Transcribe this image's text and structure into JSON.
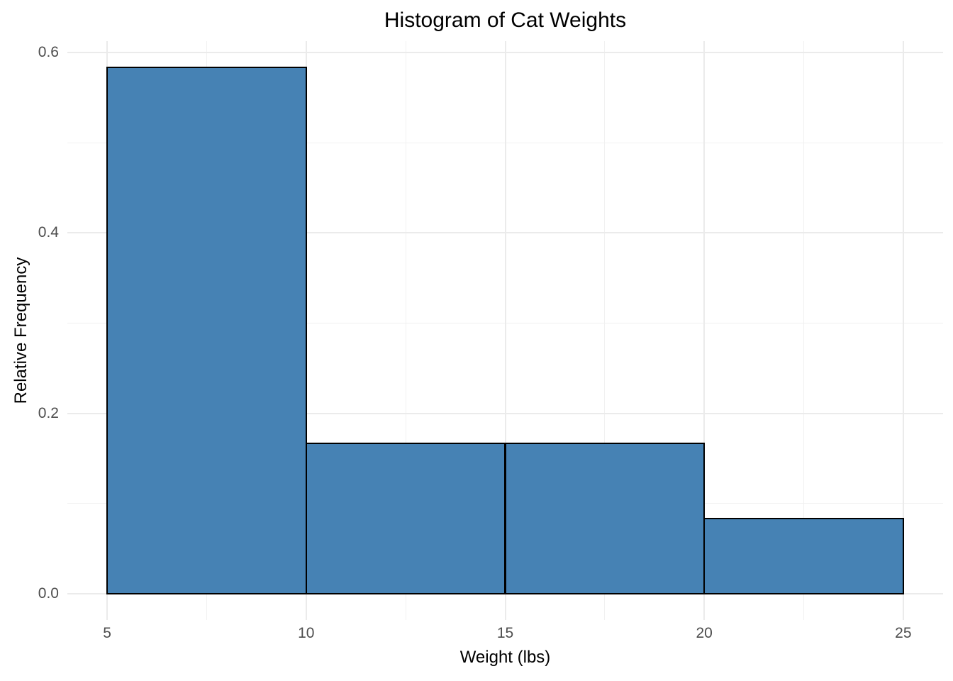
{
  "chart_data": {
    "type": "bar",
    "subtype": "histogram",
    "title": "Histogram of Cat Weights",
    "xlabel": "Weight (lbs)",
    "ylabel": "Relative Frequency",
    "bin_edges": [
      5,
      10,
      15,
      20,
      25
    ],
    "bin_labels": [
      "5-10",
      "10-15",
      "15-20",
      "20-25"
    ],
    "values": [
      0.5833,
      0.1667,
      0.1667,
      0.0833
    ],
    "x_tick_values": [
      5,
      10,
      15,
      20,
      25
    ],
    "x_tick_labels": [
      "5",
      "10",
      "15",
      "20",
      "25"
    ],
    "y_tick_values": [
      0,
      0.2,
      0.4,
      0.6
    ],
    "y_tick_labels": [
      "0.0",
      "0.2",
      "0.4",
      "0.6"
    ],
    "x_minor_gridlines": [
      7.5,
      12.5,
      17.5,
      22.5
    ],
    "y_minor_gridlines": [
      0.1,
      0.3,
      0.5
    ],
    "xlim": [
      5,
      25
    ],
    "ylim": [
      0,
      0.6
    ],
    "grid": true,
    "legend": false,
    "colors": {
      "bar_fill": "#4682B4",
      "bar_border": "#000000",
      "grid_major": "#EBEBEB",
      "grid_minor": "#F1F1F1",
      "tick_label": "#4D4D4D",
      "text": "#000000",
      "background": "#FFFFFF"
    }
  }
}
